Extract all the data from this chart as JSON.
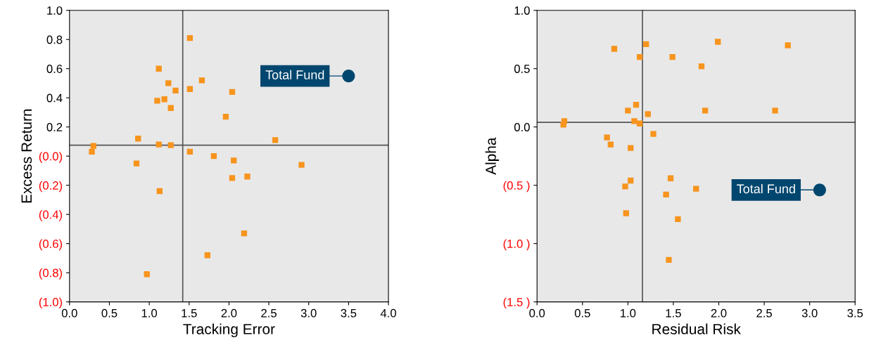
{
  "chart_data": [
    {
      "type": "scatter",
      "xlabel": "Tracking Error",
      "ylabel": "Excess Return",
      "xlim": [
        0,
        4
      ],
      "ylim": [
        -1,
        1
      ],
      "xticks": [
        {
          "value": 0,
          "label": "0.0"
        },
        {
          "value": 0.5,
          "label": "0.5"
        },
        {
          "value": 1,
          "label": "1.0"
        },
        {
          "value": 1.5,
          "label": "1.5"
        },
        {
          "value": 2,
          "label": "2.0"
        },
        {
          "value": 2.5,
          "label": "2.5"
        },
        {
          "value": 3,
          "label": "3.0"
        },
        {
          "value": 3.5,
          "label": "3.5"
        },
        {
          "value": 4,
          "label": "4.0"
        }
      ],
      "yticks": [
        {
          "value": 1,
          "label": "1.0"
        },
        {
          "value": 0.8,
          "label": "0.8"
        },
        {
          "value": 0.6,
          "label": "0.6"
        },
        {
          "value": 0.4,
          "label": "0.4"
        },
        {
          "value": 0.2,
          "label": "0.2"
        },
        {
          "value": 0,
          "label": "(0.0)"
        },
        {
          "value": -0.2,
          "label": "(0.2)"
        },
        {
          "value": -0.4,
          "label": "(0.4)"
        },
        {
          "value": -0.6,
          "label": "(0.6)"
        },
        {
          "value": -0.8,
          "label": "(0.8)"
        },
        {
          "value": -1,
          "label": "(1.0)"
        }
      ],
      "grid": false,
      "legend": "top right",
      "ref_lines": [
        {
          "axis": "x",
          "value": 1.42,
          "color": "#555555"
        },
        {
          "axis": "y",
          "value": 0.075,
          "color": "#555555"
        }
      ],
      "series": [
        {
          "color": "#f7941d",
          "marker": "square",
          "x": [
            1.51,
            1.12,
            1.24,
            1.66,
            1.33,
            1.51,
            2.04,
            1.1,
            1.19,
            1.27,
            1.96,
            0.86,
            0.3,
            1.12,
            1.27,
            2.58,
            0.28,
            1.51,
            1.81,
            2.06,
            0.84,
            2.91,
            2.23,
            2.04,
            1.13,
            2.19,
            1.73,
            0.97
          ],
          "values": [
            0.81,
            0.6,
            0.5,
            0.52,
            0.45,
            0.46,
            0.44,
            0.38,
            0.39,
            0.33,
            0.27,
            0.12,
            0.07,
            0.08,
            0.075,
            0.11,
            0.03,
            0.03,
            0.0,
            -0.03,
            -0.05,
            -0.06,
            -0.14,
            -0.15,
            -0.24,
            -0.53,
            -0.68,
            -0.81
          ]
        },
        {
          "name": "Total Fund",
          "color": "#00466e",
          "marker": "circle",
          "x": [
            3.5
          ],
          "values": [
            0.55
          ]
        }
      ]
    },
    {
      "type": "scatter",
      "xlabel": "Residual Risk",
      "ylabel": "Alpha",
      "xlim": [
        0,
        3.5
      ],
      "ylim": [
        -1.5,
        1
      ],
      "xticks": [
        {
          "value": 0,
          "label": "0.0"
        },
        {
          "value": 0.5,
          "label": "0.5"
        },
        {
          "value": 1,
          "label": "1.0"
        },
        {
          "value": 1.5,
          "label": "1.5"
        },
        {
          "value": 2,
          "label": "2.0"
        },
        {
          "value": 2.5,
          "label": "2.5"
        },
        {
          "value": 3,
          "label": "3.0"
        },
        {
          "value": 3.5,
          "label": "3.5"
        }
      ],
      "yticks": [
        {
          "value": 1,
          "label": "1.0"
        },
        {
          "value": 0.5,
          "label": "0.5"
        },
        {
          "value": 0,
          "label": "0.0"
        },
        {
          "value": -0.5,
          "label": "(0.5 )"
        },
        {
          "value": -1,
          "label": "(1.0 )"
        },
        {
          "value": -1.5,
          "label": "(1.5 )"
        }
      ],
      "grid": false,
      "legend": "right",
      "ref_lines": [
        {
          "axis": "x",
          "value": 1.16,
          "color": "#555555"
        },
        {
          "axis": "y",
          "value": 0.04,
          "color": "#555555"
        }
      ],
      "series": [
        {
          "color": "#f7941d",
          "marker": "square",
          "x": [
            0.85,
            1.2,
            1.13,
            1.49,
            1.99,
            1.81,
            2.76,
            1.09,
            1.0,
            1.22,
            1.85,
            2.62,
            0.3,
            0.29,
            1.07,
            1.13,
            1.28,
            0.77,
            0.81,
            1.03,
            1.03,
            0.97,
            1.47,
            1.42,
            1.75,
            0.98,
            1.55,
            1.45
          ],
          "values": [
            0.67,
            0.71,
            0.6,
            0.6,
            0.73,
            0.52,
            0.7,
            0.19,
            0.14,
            0.11,
            0.14,
            0.14,
            0.05,
            0.02,
            0.05,
            0.03,
            -0.06,
            -0.09,
            -0.15,
            -0.18,
            -0.46,
            -0.51,
            -0.44,
            -0.58,
            -0.53,
            -0.74,
            -0.79,
            -1.14
          ]
        },
        {
          "name": "Total Fund",
          "color": "#00466e",
          "marker": "circle",
          "x": [
            3.11
          ],
          "values": [
            -0.54
          ]
        }
      ]
    }
  ]
}
